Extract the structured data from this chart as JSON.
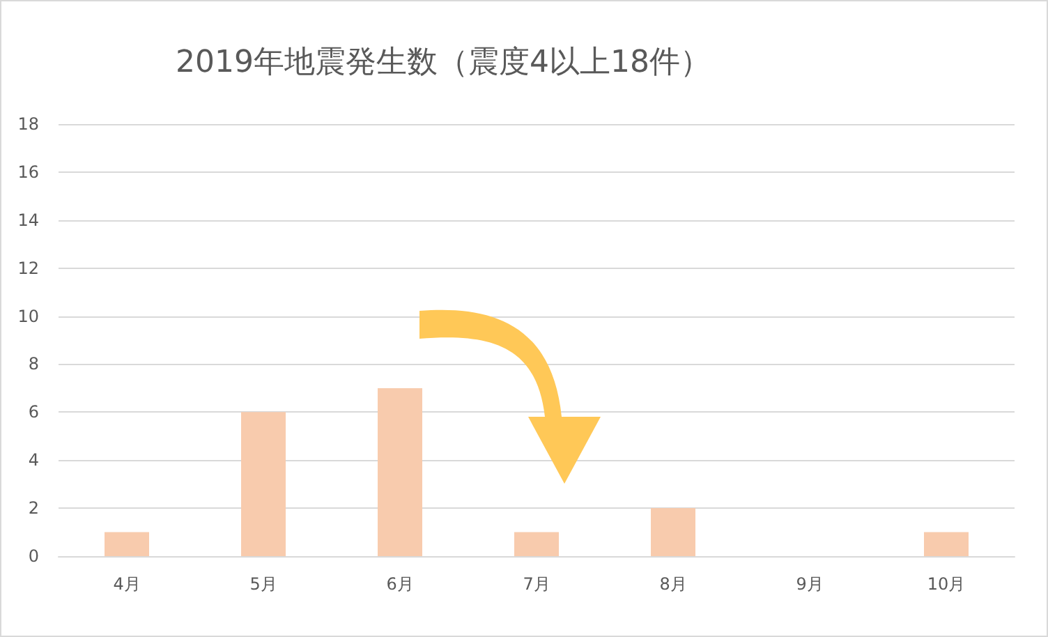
{
  "chart_data": {
    "type": "bar",
    "title": "2019年地震発生数（震度4以上18件）",
    "categories": [
      "4月",
      "5月",
      "6月",
      "7月",
      "8月",
      "9月",
      "10月"
    ],
    "values": [
      1,
      6,
      7,
      1,
      2,
      0,
      1
    ],
    "color": "#f8cbad",
    "ylim": [
      0,
      18
    ],
    "yticks": [
      0,
      2,
      4,
      6,
      8,
      10,
      12,
      14,
      16,
      18
    ],
    "grid": "y"
  }
}
